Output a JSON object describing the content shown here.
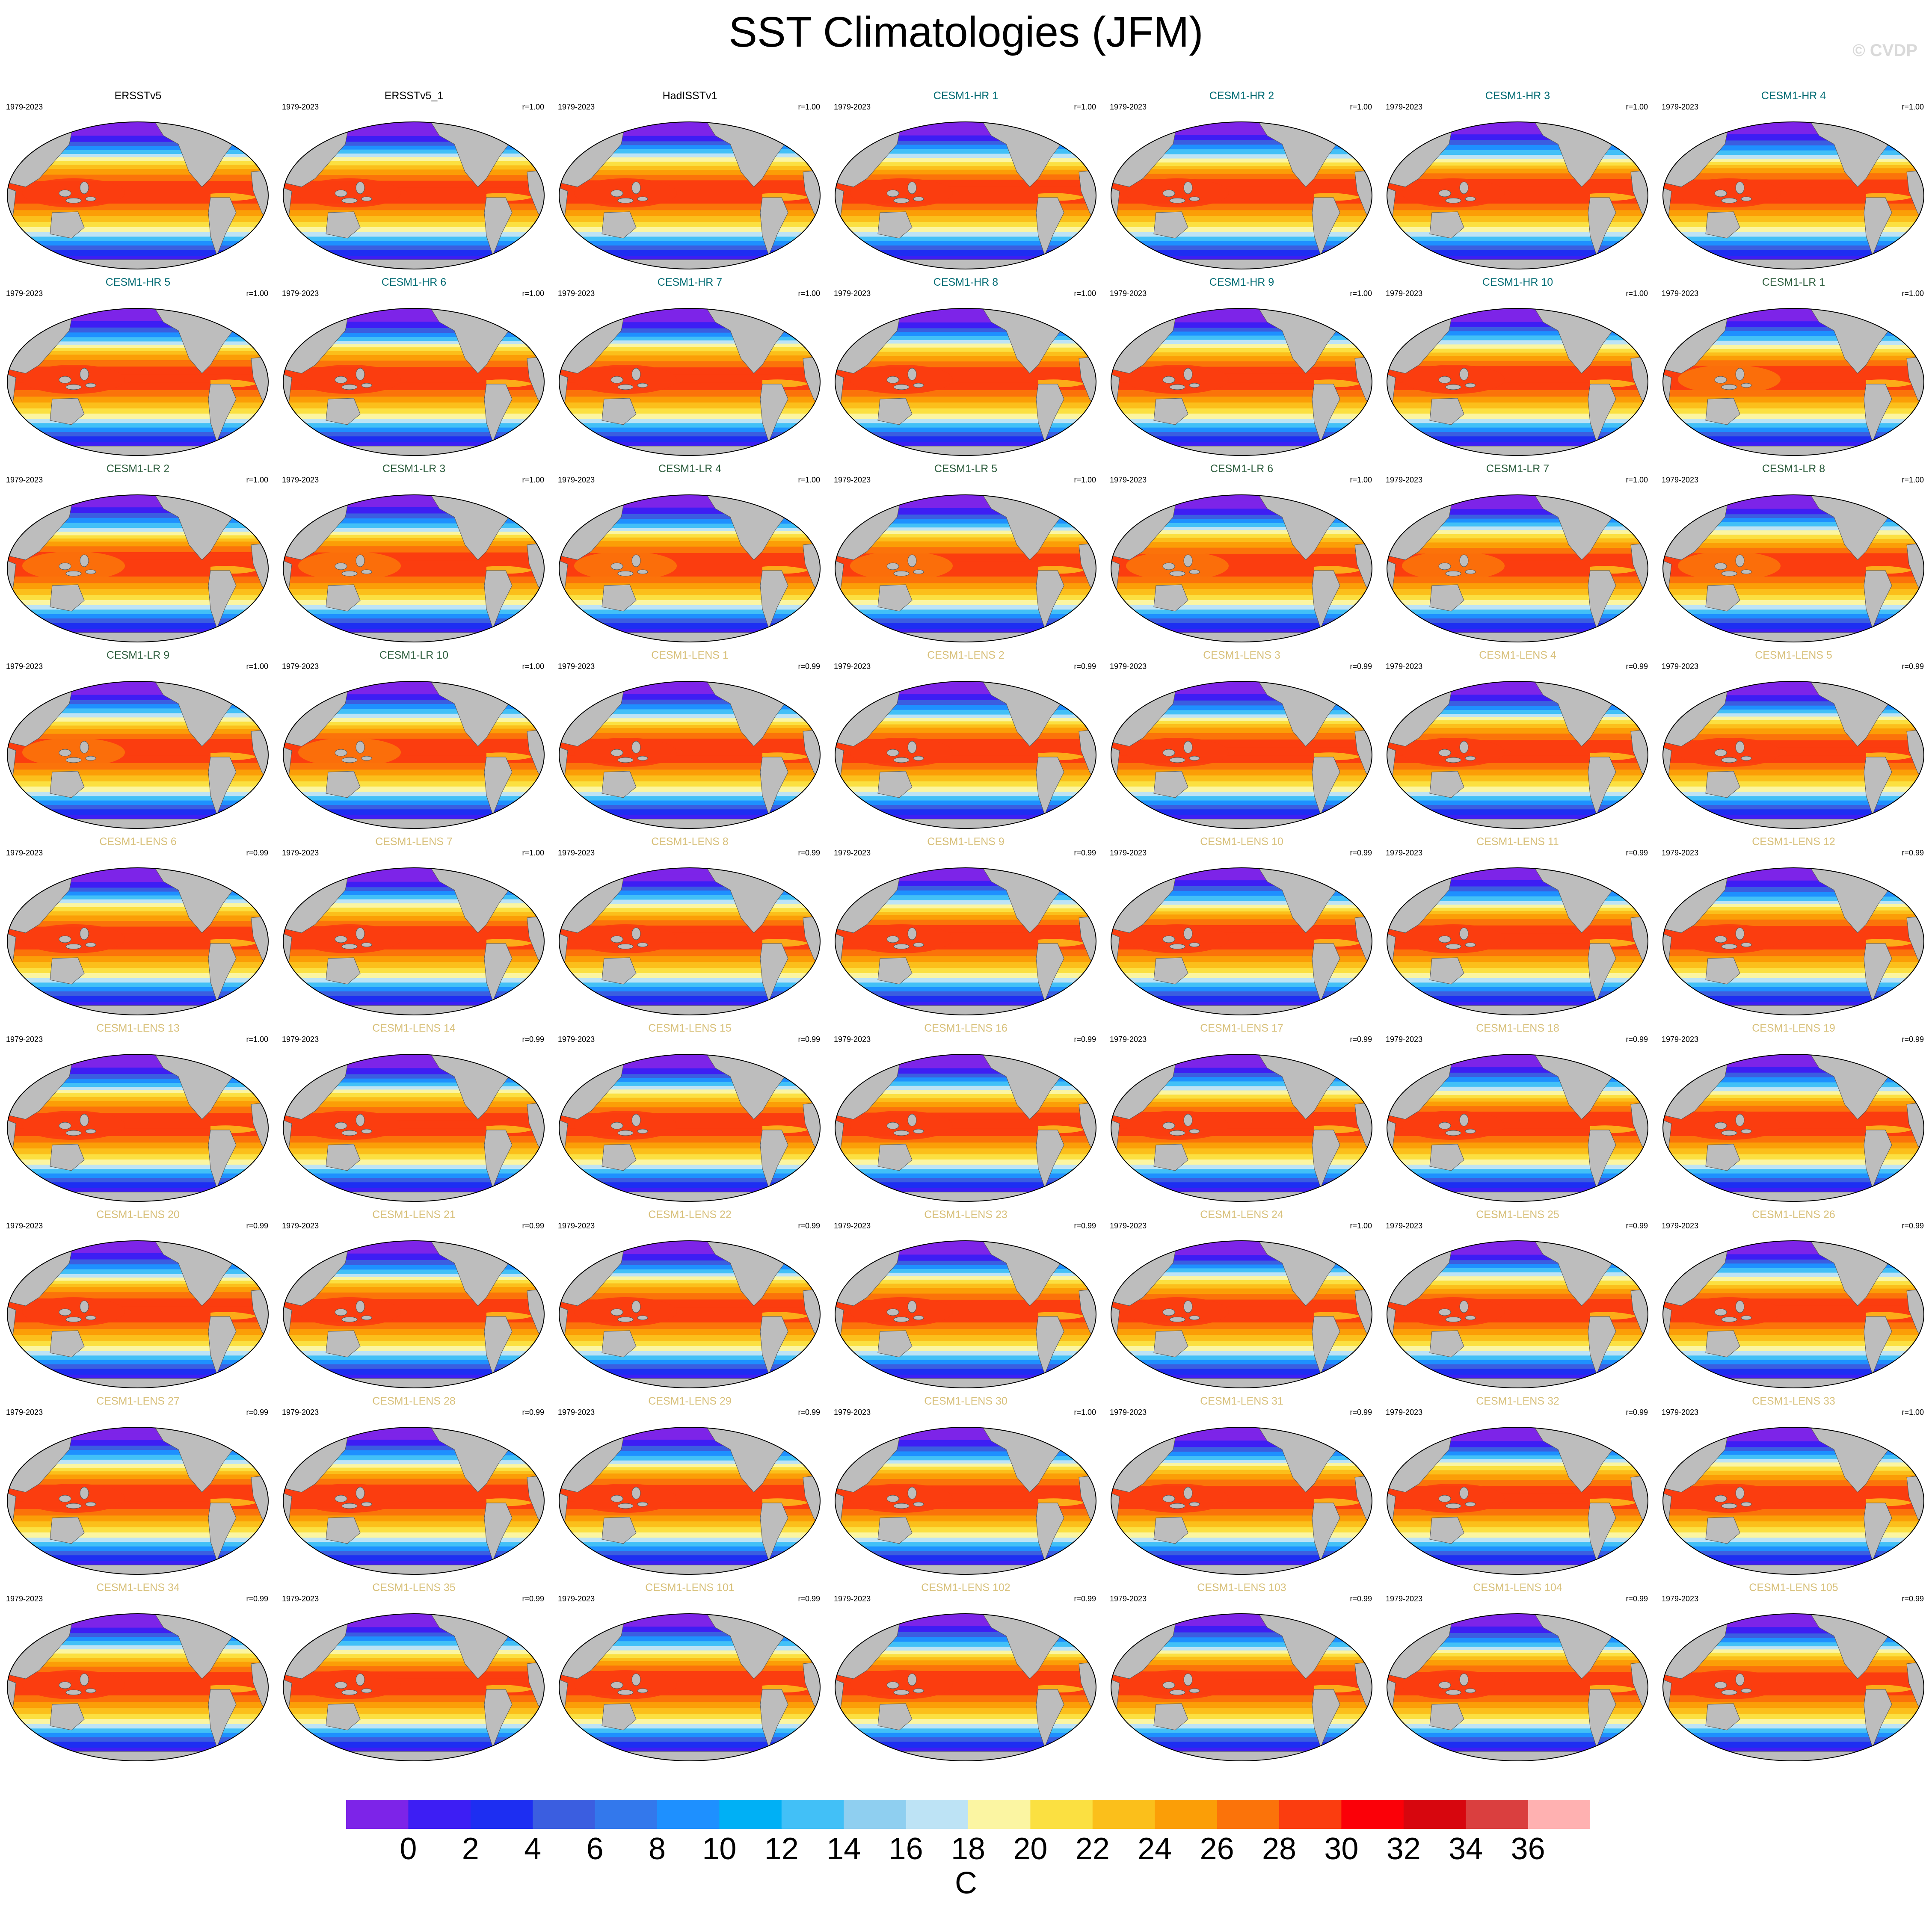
{
  "title": "SST Climatologies (JFM)",
  "watermark": "© CVDP",
  "colors": {
    "land": "#bdbdbd",
    "obs_title": "#000000",
    "hr_title": "#006b73",
    "lr_title": "#2e5e3e",
    "lens_title": "#d8c07a",
    "palette": [
      "#7d24e8",
      "#3d1ef4",
      "#1d2ef2",
      "#3b5ee0",
      "#3378ec",
      "#1e90ff",
      "#00b0f5",
      "#42c0f7",
      "#8fcff0",
      "#bde3f5",
      "#fbf5a2",
      "#fbe041",
      "#fbbf1b",
      "#fb9e07",
      "#fb730a",
      "#fb3d0f",
      "#fb0008",
      "#d7060e",
      "#da3f3f",
      "#ffb1b1"
    ]
  },
  "chart_data": {
    "type": "heatmap",
    "title": "SST Climatologies (JFM)",
    "projection": "Robinson (Pacific-centered global map)",
    "units": "C",
    "levels": [
      0,
      2,
      4,
      6,
      8,
      10,
      12,
      14,
      16,
      18,
      20,
      22,
      24,
      26,
      28,
      30,
      32,
      34,
      36
    ],
    "colorbar_ticks": [
      "0",
      "2",
      "4",
      "6",
      "8",
      "10",
      "12",
      "14",
      "16",
      "18",
      "20",
      "22",
      "24",
      "26",
      "28",
      "30",
      "32",
      "34",
      "36"
    ],
    "grid": {
      "rows": 9,
      "cols": 7
    },
    "panels": [
      {
        "name": "ERSSTv5",
        "years": "1979-2023",
        "r": "",
        "group": "obs"
      },
      {
        "name": "ERSSTv5_1",
        "years": "1979-2023",
        "r": "r=1.00",
        "group": "obs"
      },
      {
        "name": "HadISSTv1",
        "years": "1979-2023",
        "r": "r=1.00",
        "group": "obs"
      },
      {
        "name": "CESM1-HR 1",
        "years": "1979-2023",
        "r": "r=1.00",
        "group": "hr"
      },
      {
        "name": "CESM1-HR 2",
        "years": "1979-2023",
        "r": "r=1.00",
        "group": "hr"
      },
      {
        "name": "CESM1-HR 3",
        "years": "1979-2023",
        "r": "r=1.00",
        "group": "hr"
      },
      {
        "name": "CESM1-HR 4",
        "years": "1979-2023",
        "r": "r=1.00",
        "group": "hr"
      },
      {
        "name": "CESM1-HR 5",
        "years": "1979-2023",
        "r": "r=1.00",
        "group": "hr"
      },
      {
        "name": "CESM1-HR 6",
        "years": "1979-2023",
        "r": "r=1.00",
        "group": "hr"
      },
      {
        "name": "CESM1-HR 7",
        "years": "1979-2023",
        "r": "r=1.00",
        "group": "hr"
      },
      {
        "name": "CESM1-HR 8",
        "years": "1979-2023",
        "r": "r=1.00",
        "group": "hr"
      },
      {
        "name": "CESM1-HR 9",
        "years": "1979-2023",
        "r": "r=1.00",
        "group": "hr"
      },
      {
        "name": "CESM1-HR 10",
        "years": "1979-2023",
        "r": "r=1.00",
        "group": "hr"
      },
      {
        "name": "CESM1-LR 1",
        "years": "1979-2023",
        "r": "r=1.00",
        "group": "lr"
      },
      {
        "name": "CESM1-LR 2",
        "years": "1979-2023",
        "r": "r=1.00",
        "group": "lr"
      },
      {
        "name": "CESM1-LR 3",
        "years": "1979-2023",
        "r": "r=1.00",
        "group": "lr"
      },
      {
        "name": "CESM1-LR 4",
        "years": "1979-2023",
        "r": "r=1.00",
        "group": "lr"
      },
      {
        "name": "CESM1-LR 5",
        "years": "1979-2023",
        "r": "r=1.00",
        "group": "lr"
      },
      {
        "name": "CESM1-LR 6",
        "years": "1979-2023",
        "r": "r=1.00",
        "group": "lr"
      },
      {
        "name": "CESM1-LR 7",
        "years": "1979-2023",
        "r": "r=1.00",
        "group": "lr"
      },
      {
        "name": "CESM1-LR 8",
        "years": "1979-2023",
        "r": "r=1.00",
        "group": "lr"
      },
      {
        "name": "CESM1-LR 9",
        "years": "1979-2023",
        "r": "r=1.00",
        "group": "lr"
      },
      {
        "name": "CESM1-LR 10",
        "years": "1979-2023",
        "r": "r=1.00",
        "group": "lr"
      },
      {
        "name": "CESM1-LENS 1",
        "years": "1979-2023",
        "r": "r=0.99",
        "group": "lens"
      },
      {
        "name": "CESM1-LENS 2",
        "years": "1979-2023",
        "r": "r=0.99",
        "group": "lens"
      },
      {
        "name": "CESM1-LENS 3",
        "years": "1979-2023",
        "r": "r=0.99",
        "group": "lens"
      },
      {
        "name": "CESM1-LENS 4",
        "years": "1979-2023",
        "r": "r=0.99",
        "group": "lens"
      },
      {
        "name": "CESM1-LENS 5",
        "years": "1979-2023",
        "r": "r=0.99",
        "group": "lens"
      },
      {
        "name": "CESM1-LENS 6",
        "years": "1979-2023",
        "r": "r=0.99",
        "group": "lens"
      },
      {
        "name": "CESM1-LENS 7",
        "years": "1979-2023",
        "r": "r=1.00",
        "group": "lens"
      },
      {
        "name": "CESM1-LENS 8",
        "years": "1979-2023",
        "r": "r=0.99",
        "group": "lens"
      },
      {
        "name": "CESM1-LENS 9",
        "years": "1979-2023",
        "r": "r=0.99",
        "group": "lens"
      },
      {
        "name": "CESM1-LENS 10",
        "years": "1979-2023",
        "r": "r=0.99",
        "group": "lens"
      },
      {
        "name": "CESM1-LENS 11",
        "years": "1979-2023",
        "r": "r=0.99",
        "group": "lens"
      },
      {
        "name": "CESM1-LENS 12",
        "years": "1979-2023",
        "r": "r=0.99",
        "group": "lens"
      },
      {
        "name": "CESM1-LENS 13",
        "years": "1979-2023",
        "r": "r=1.00",
        "group": "lens"
      },
      {
        "name": "CESM1-LENS 14",
        "years": "1979-2023",
        "r": "r=0.99",
        "group": "lens"
      },
      {
        "name": "CESM1-LENS 15",
        "years": "1979-2023",
        "r": "r=0.99",
        "group": "lens"
      },
      {
        "name": "CESM1-LENS 16",
        "years": "1979-2023",
        "r": "r=0.99",
        "group": "lens"
      },
      {
        "name": "CESM1-LENS 17",
        "years": "1979-2023",
        "r": "r=0.99",
        "group": "lens"
      },
      {
        "name": "CESM1-LENS 18",
        "years": "1979-2023",
        "r": "r=0.99",
        "group": "lens"
      },
      {
        "name": "CESM1-LENS 19",
        "years": "1979-2023",
        "r": "r=0.99",
        "group": "lens"
      },
      {
        "name": "CESM1-LENS 20",
        "years": "1979-2023",
        "r": "r=0.99",
        "group": "lens"
      },
      {
        "name": "CESM1-LENS 21",
        "years": "1979-2023",
        "r": "r=0.99",
        "group": "lens"
      },
      {
        "name": "CESM1-LENS 22",
        "years": "1979-2023",
        "r": "r=0.99",
        "group": "lens"
      },
      {
        "name": "CESM1-LENS 23",
        "years": "1979-2023",
        "r": "r=0.99",
        "group": "lens"
      },
      {
        "name": "CESM1-LENS 24",
        "years": "1979-2023",
        "r": "r=1.00",
        "group": "lens"
      },
      {
        "name": "CESM1-LENS 25",
        "years": "1979-2023",
        "r": "r=0.99",
        "group": "lens"
      },
      {
        "name": "CESM1-LENS 26",
        "years": "1979-2023",
        "r": "r=0.99",
        "group": "lens"
      },
      {
        "name": "CESM1-LENS 27",
        "years": "1979-2023",
        "r": "r=0.99",
        "group": "lens"
      },
      {
        "name": "CESM1-LENS 28",
        "years": "1979-2023",
        "r": "r=0.99",
        "group": "lens"
      },
      {
        "name": "CESM1-LENS 29",
        "years": "1979-2023",
        "r": "r=0.99",
        "group": "lens"
      },
      {
        "name": "CESM1-LENS 30",
        "years": "1979-2023",
        "r": "r=1.00",
        "group": "lens"
      },
      {
        "name": "CESM1-LENS 31",
        "years": "1979-2023",
        "r": "r=0.99",
        "group": "lens"
      },
      {
        "name": "CESM1-LENS 32",
        "years": "1979-2023",
        "r": "r=0.99",
        "group": "lens"
      },
      {
        "name": "CESM1-LENS 33",
        "years": "1979-2023",
        "r": "r=1.00",
        "group": "lens"
      },
      {
        "name": "CESM1-LENS 34",
        "years": "1979-2023",
        "r": "r=0.99",
        "group": "lens"
      },
      {
        "name": "CESM1-LENS 35",
        "years": "1979-2023",
        "r": "r=0.99",
        "group": "lens"
      },
      {
        "name": "CESM1-LENS 101",
        "years": "1979-2023",
        "r": "r=0.99",
        "group": "lens"
      },
      {
        "name": "CESM1-LENS 102",
        "years": "1979-2023",
        "r": "r=0.99",
        "group": "lens"
      },
      {
        "name": "CESM1-LENS 103",
        "years": "1979-2023",
        "r": "r=0.99",
        "group": "lens"
      },
      {
        "name": "CESM1-LENS 104",
        "years": "1979-2023",
        "r": "r=0.99",
        "group": "lens"
      },
      {
        "name": "CESM1-LENS 105",
        "years": "1979-2023",
        "r": "r=0.99",
        "group": "lens"
      }
    ]
  }
}
